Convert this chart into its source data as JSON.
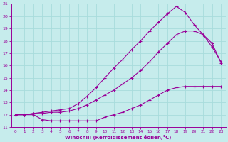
{
  "xlabel": "Windchill (Refroidissement éolien,°C)",
  "xlim": [
    -0.5,
    23.5
  ],
  "ylim": [
    11,
    21
  ],
  "xticks": [
    0,
    1,
    2,
    3,
    4,
    5,
    6,
    7,
    8,
    9,
    10,
    11,
    12,
    13,
    14,
    15,
    16,
    17,
    18,
    19,
    20,
    21,
    22,
    23
  ],
  "yticks": [
    11,
    12,
    13,
    14,
    15,
    16,
    17,
    18,
    19,
    20,
    21
  ],
  "bg_color": "#c6ecec",
  "line_color": "#990099",
  "grid_color": "#a8dcdc",
  "curve_bottom_x": [
    0,
    1,
    2,
    3,
    4,
    5,
    6,
    7,
    8,
    9,
    10,
    11,
    12,
    13,
    14,
    15,
    16,
    17,
    18,
    19,
    20,
    21,
    22,
    23
  ],
  "curve_bottom_y": [
    12.0,
    12.0,
    12.0,
    11.6,
    11.5,
    11.5,
    11.5,
    11.5,
    11.5,
    11.5,
    11.8,
    12.0,
    12.2,
    12.5,
    12.8,
    13.2,
    13.6,
    14.0,
    14.2,
    14.3,
    14.3,
    14.3,
    14.3,
    14.3
  ],
  "curve_mid_x": [
    0,
    1,
    2,
    3,
    4,
    5,
    6,
    7,
    8,
    9,
    10,
    11,
    12,
    13,
    14,
    15,
    16,
    17,
    18,
    19,
    20,
    21,
    22,
    23
  ],
  "curve_mid_y": [
    12.0,
    12.0,
    12.1,
    12.1,
    12.2,
    12.2,
    12.3,
    12.5,
    12.8,
    13.2,
    13.6,
    14.0,
    14.5,
    15.0,
    15.6,
    16.3,
    17.1,
    17.8,
    18.5,
    18.8,
    18.8,
    18.5,
    17.5,
    16.3
  ],
  "curve_top_x": [
    0,
    1,
    2,
    3,
    4,
    5,
    6,
    7,
    8,
    9,
    10,
    11,
    12,
    13,
    14,
    15,
    16,
    17,
    18,
    19,
    20,
    21,
    22,
    23
  ],
  "curve_top_y": [
    12.0,
    12.0,
    12.1,
    12.2,
    12.3,
    12.4,
    12.5,
    12.9,
    13.5,
    14.2,
    15.0,
    15.8,
    16.5,
    17.3,
    18.0,
    18.8,
    19.5,
    20.2,
    20.8,
    20.3,
    19.3,
    18.5,
    17.8,
    16.2
  ]
}
